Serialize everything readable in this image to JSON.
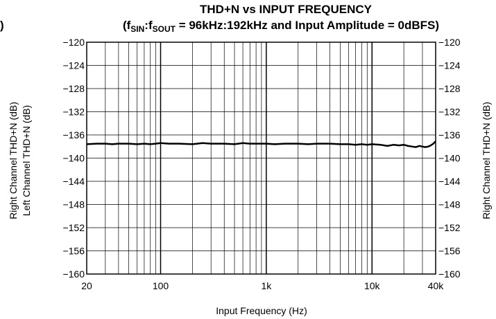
{
  "chart_data": {
    "type": "line",
    "title": "THD+N vs INPUT FREQUENCY",
    "subtitle": {
      "open": "(f",
      "sub1": "SIN",
      "colon": ":f",
      "sub2": "SOUT",
      "rest": " = 96kHz:192kHz and Input Amplitude = 0dBFS)"
    },
    "cropped_left_text": ")",
    "xlabel": "Input Frequency (Hz)",
    "ylabel_left_1": "Right Channel THD+N (dB)",
    "ylabel_left_2": "Left Channel THD+N (dB)",
    "ylabel_right": "Right Channel THD+N (dB)",
    "x_scale": "log",
    "xlim": [
      20,
      40000
    ],
    "ylim": [
      -160,
      -120
    ],
    "grid": true,
    "x_ticks": [
      {
        "value": 20,
        "label": "20"
      },
      {
        "value": 100,
        "label": "100"
      },
      {
        "value": 1000,
        "label": "1k"
      },
      {
        "value": 10000,
        "label": "10k"
      },
      {
        "value": 40000,
        "label": "40k"
      }
    ],
    "y_ticks": [
      {
        "value": -120,
        "label": "−120"
      },
      {
        "value": -124,
        "label": "−124"
      },
      {
        "value": -128,
        "label": "−128"
      },
      {
        "value": -132,
        "label": "−132"
      },
      {
        "value": -136,
        "label": "−136"
      },
      {
        "value": -140,
        "label": "−140"
      },
      {
        "value": -144,
        "label": "−144"
      },
      {
        "value": -148,
        "label": "−148"
      },
      {
        "value": -152,
        "label": "−152"
      },
      {
        "value": -156,
        "label": "−156"
      },
      {
        "value": -160,
        "label": "−160"
      }
    ],
    "series": [
      {
        "color": "#000000",
        "x": [
          20,
          25,
          30,
          35,
          40,
          50,
          60,
          70,
          80,
          90,
          100,
          120,
          150,
          200,
          250,
          300,
          400,
          500,
          600,
          700,
          800,
          1000,
          1200,
          1500,
          2000,
          2500,
          3000,
          4000,
          5000,
          6000,
          7000,
          8000,
          9000,
          10000,
          12000,
          14000,
          16000,
          18000,
          20000,
          22000,
          24000,
          26000,
          28000,
          30000,
          32000,
          34000,
          36000,
          38000,
          40000
        ],
        "y": [
          -137.6,
          -137.5,
          -137.5,
          -137.6,
          -137.5,
          -137.5,
          -137.6,
          -137.5,
          -137.6,
          -137.5,
          -137.4,
          -137.5,
          -137.5,
          -137.6,
          -137.4,
          -137.5,
          -137.5,
          -137.6,
          -137.4,
          -137.5,
          -137.5,
          -137.5,
          -137.6,
          -137.5,
          -137.5,
          -137.6,
          -137.5,
          -137.5,
          -137.6,
          -137.6,
          -137.7,
          -137.6,
          -137.7,
          -137.6,
          -137.7,
          -137.9,
          -137.7,
          -137.8,
          -137.7,
          -137.9,
          -138.0,
          -138.1,
          -137.9,
          -138.0,
          -138.1,
          -138.0,
          -137.8,
          -137.5,
          -137.1
        ]
      }
    ]
  }
}
